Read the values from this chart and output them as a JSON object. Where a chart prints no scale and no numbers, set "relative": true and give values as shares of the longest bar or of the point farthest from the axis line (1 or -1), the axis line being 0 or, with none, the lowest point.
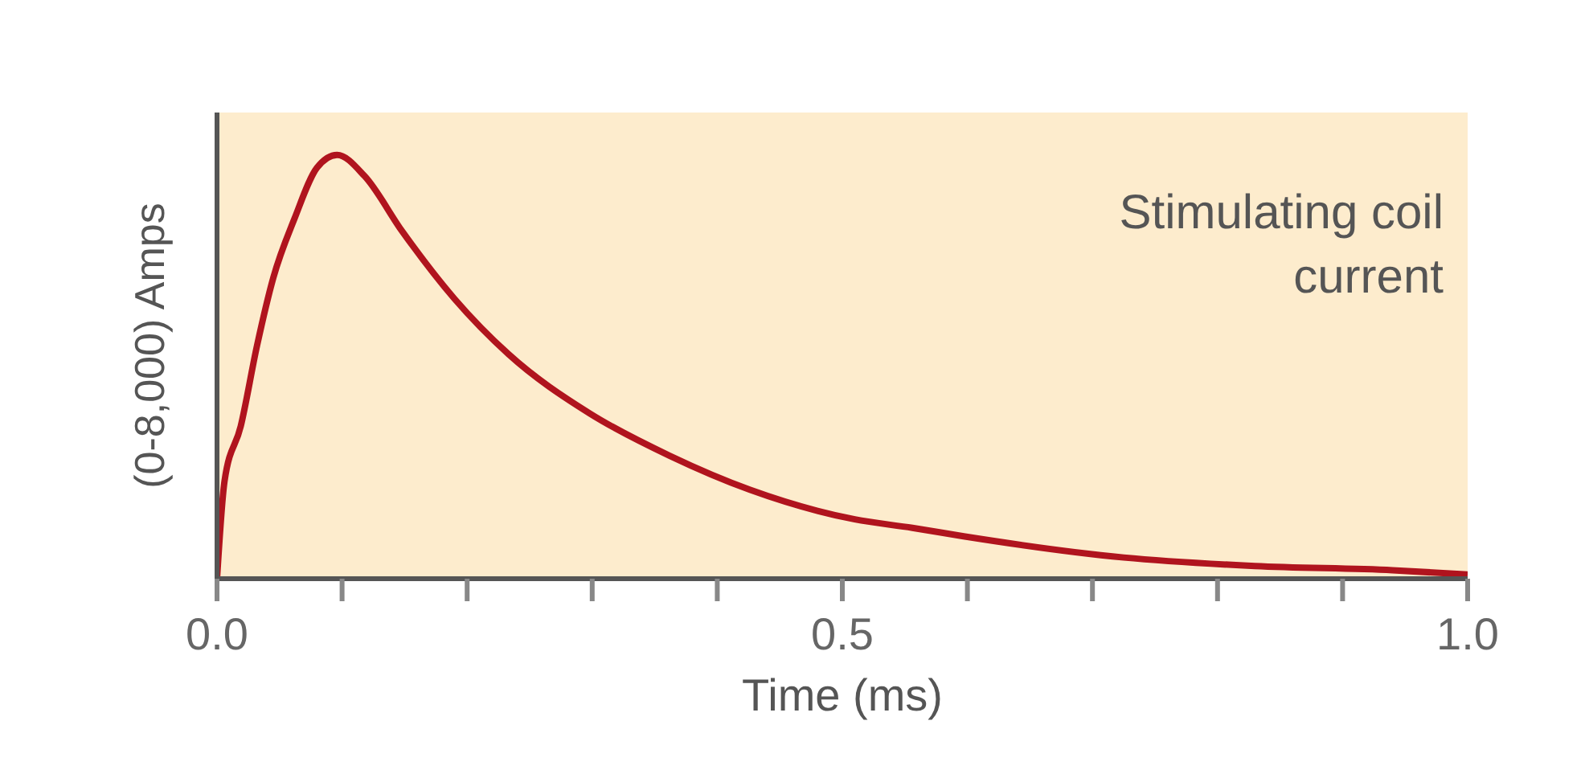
{
  "chart_data": {
    "type": "line",
    "xlabel": "Time (ms)",
    "ylabel": "(0-8,000) Amps",
    "relative": true,
    "annotations": [
      "Stimulating coil current"
    ],
    "x": [
      0,
      0.006,
      0.019,
      0.032,
      0.045,
      0.062,
      0.08,
      0.096,
      0.118,
      0.148,
      0.19,
      0.233,
      0.298,
      0.362,
      0.426,
      0.51,
      0.556,
      0.597,
      0.725,
      0.83,
      0.94,
      1.0
    ],
    "series": [
      {
        "color": "#b0141e",
        "values": [
          0,
          0.23,
          0.36,
          0.55,
          0.71,
          0.85,
          0.97,
          1.0,
          0.95,
          0.82,
          0.66,
          0.53,
          0.39,
          0.29,
          0.21,
          0.14,
          0.12,
          0.1,
          0.05,
          0.03,
          0.02,
          0.01
        ]
      }
    ],
    "xlim": [
      0,
      1.0
    ],
    "xticks": [
      {
        "value": 0,
        "label": "0.0"
      },
      {
        "value": 0.1,
        "label": null
      },
      {
        "value": 0.2,
        "label": null
      },
      {
        "value": 0.3,
        "label": null
      },
      {
        "value": 0.4,
        "label": null
      },
      {
        "value": 0.5,
        "label": "0.5"
      },
      {
        "value": 0.6,
        "label": null
      },
      {
        "value": 0.7,
        "label": null
      },
      {
        "value": 0.8,
        "label": null
      },
      {
        "value": 0.9,
        "label": null
      },
      {
        "value": 1.0,
        "label": "1.0"
      }
    ],
    "marker": "none",
    "line_style": "solid",
    "grid": false
  }
}
